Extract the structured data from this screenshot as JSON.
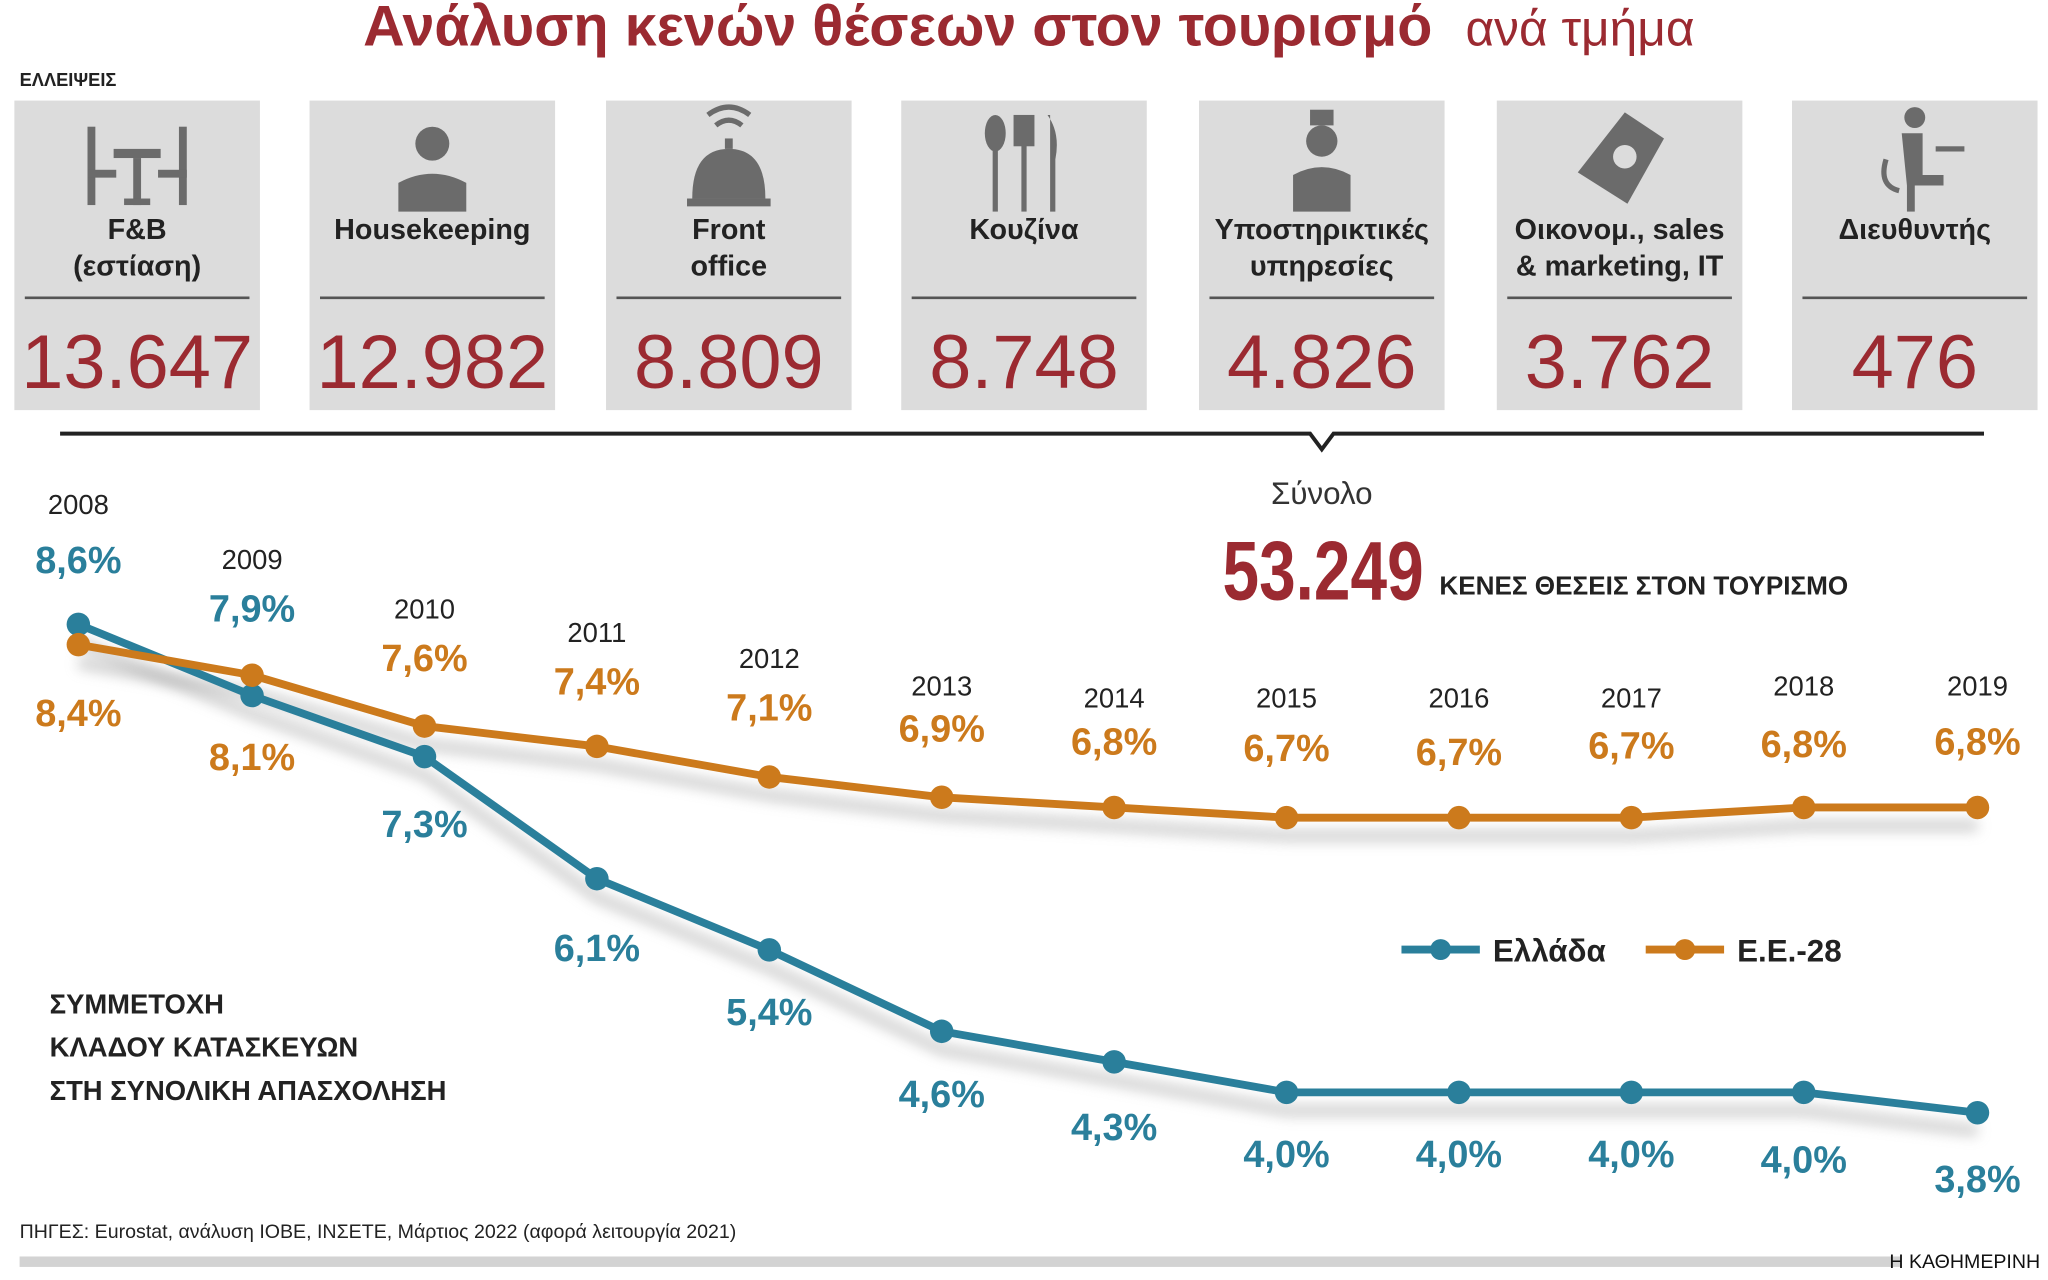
{
  "title": {
    "main": "Ανάλυση κενών θέσεων στον τουρισμό",
    "sub": "ανά τμήμα"
  },
  "shortages_label": "ΕΛΛΕΙΨΕΙΣ",
  "departments": [
    {
      "line1": "F&B",
      "line2": "(εστίαση)",
      "value": "13.647",
      "icon": "dining-table-icon"
    },
    {
      "line1": "Housekeeping",
      "line2": "",
      "value": "12.982",
      "icon": "housekeeper-icon"
    },
    {
      "line1": "Front",
      "line2": "office",
      "value": "8.809",
      "icon": "reception-bell-icon"
    },
    {
      "line1": "Κουζίνα",
      "line2": "",
      "value": "8.748",
      "icon": "cutlery-icon"
    },
    {
      "line1": "Υποστηρικτικές",
      "line2": "υπηρεσίες",
      "value": "4.826",
      "icon": "bellboy-icon"
    },
    {
      "line1": "Οικονομ., sales",
      "line2": "& marketing, IT",
      "value": "3.762",
      "icon": "money-icon"
    },
    {
      "line1": "Διευθυντής",
      "line2": "",
      "value": "476",
      "icon": "manager-desk-icon"
    }
  ],
  "total": {
    "label": "Σύνολο",
    "value": "53.249",
    "caption": "ΚΕΝΕΣ ΘΕΣΕΙΣ ΣΤΟΝ ΤΟΥΡΙΣΜΟ"
  },
  "chart_data": {
    "type": "line",
    "title": "ΣΥΜΜΕΤΟΧΗ ΚΛΑΔΟΥ ΚΑΤΑΣΚΕΥΩΝ ΣΤΗ ΣΥΝΟΛΙΚΗ ΑΠΑΣΧΟΛΗΣΗ",
    "title_lines": [
      "ΣΥΜΜΕΤΟΧΗ",
      "ΚΛΑΔΟΥ ΚΑΤΑΣΚΕΥΩΝ",
      "ΣΤΗ ΣΥΝΟΛΙΚΗ ΑΠΑΣΧΟΛΗΣΗ"
    ],
    "x": [
      "2008",
      "2009",
      "2010",
      "2011",
      "2012",
      "2013",
      "2014",
      "2015",
      "2016",
      "2017",
      "2018",
      "2019"
    ],
    "series": [
      {
        "name": "Ελλάδα",
        "color": "#2a7f9b",
        "values": [
          8.6,
          7.9,
          7.3,
          6.1,
          5.4,
          4.6,
          4.3,
          4.0,
          4.0,
          4.0,
          4.0,
          3.8
        ],
        "labels": [
          "8,6%",
          "7,9%",
          "7,3%",
          "6,1%",
          "5,4%",
          "4,6%",
          "4,3%",
          "4,0%",
          "4,0%",
          "4,0%",
          "4,0%",
          "3,8%"
        ]
      },
      {
        "name": "Ε.Ε.-28",
        "color": "#cc7a1c",
        "values": [
          8.4,
          8.1,
          7.6,
          7.4,
          7.1,
          6.9,
          6.8,
          6.7,
          6.7,
          6.7,
          6.8,
          6.8
        ],
        "labels": [
          "8,4%",
          "8,1%",
          "7,6%",
          "7,4%",
          "7,1%",
          "6,9%",
          "6,8%",
          "6,7%",
          "6,7%",
          "6,7%",
          "6,8%",
          "6,8%"
        ]
      }
    ],
    "legend": "middle-right",
    "grid": false
  },
  "source": "ΠΗΓΕΣ: Eurostat, ανάλυση ΙΟΒΕ, ΙΝΣΕΤΕ, Μάρτιος 2022 (αφορά λειτουργία 2021)",
  "brand": "Η ΚΑΘΗΜΕΡΙΝΗ"
}
